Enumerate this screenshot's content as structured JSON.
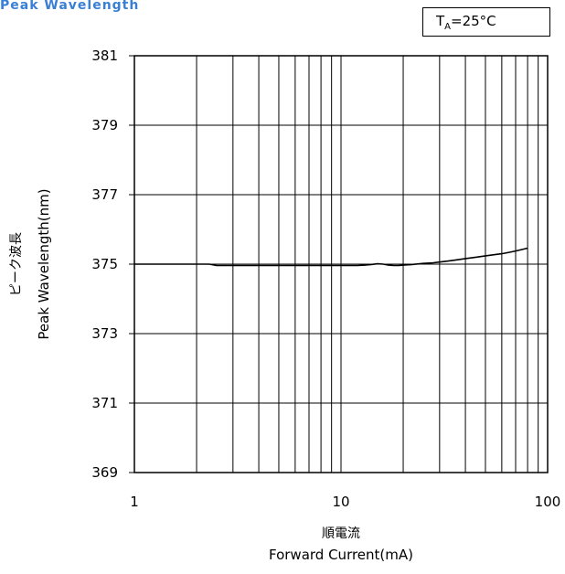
{
  "header": {
    "title": "Peak Wavelength",
    "condition_main": "T",
    "condition_sub": "A",
    "condition_rest": "=25°C"
  },
  "chart_data": {
    "type": "line",
    "title": "Peak Wavelength",
    "ylabel_jp": "ピーク波長",
    "ylabel": "Peak Wavelength(nm)",
    "xlabel_jp": "順電流",
    "xlabel": "Forward Current(mA)",
    "x_scale": "log",
    "xlim": [
      1,
      100
    ],
    "ylim": [
      369,
      381
    ],
    "x_ticks": [
      1,
      10,
      100
    ],
    "x_tick_labels": [
      "1",
      "10",
      "100"
    ],
    "y_ticks": [
      369,
      371,
      373,
      375,
      377,
      379,
      381
    ],
    "y_tick_labels": [
      "369",
      "371",
      "373",
      "375",
      "377",
      "379",
      "381"
    ],
    "grid": true,
    "series": [
      {
        "x": [
          1,
          1.5,
          2,
          2.3,
          2.5,
          3,
          4,
          5,
          6,
          7,
          8,
          9,
          10,
          11,
          12,
          13,
          14,
          15,
          16,
          17,
          18,
          19,
          20,
          22,
          25,
          28,
          30,
          33,
          36,
          40,
          45,
          50,
          55,
          60,
          65,
          70,
          75,
          80
        ],
        "y": [
          375.0,
          375.0,
          375.0,
          375.0,
          374.96,
          374.96,
          374.96,
          374.96,
          374.96,
          374.96,
          374.96,
          374.96,
          374.96,
          374.96,
          374.96,
          374.97,
          374.99,
          375.01,
          375.0,
          374.97,
          374.96,
          374.96,
          374.97,
          374.99,
          375.02,
          375.04,
          375.06,
          375.09,
          375.12,
          375.16,
          375.2,
          375.24,
          375.27,
          375.3,
          375.34,
          375.38,
          375.42,
          375.46
        ]
      }
    ]
  }
}
